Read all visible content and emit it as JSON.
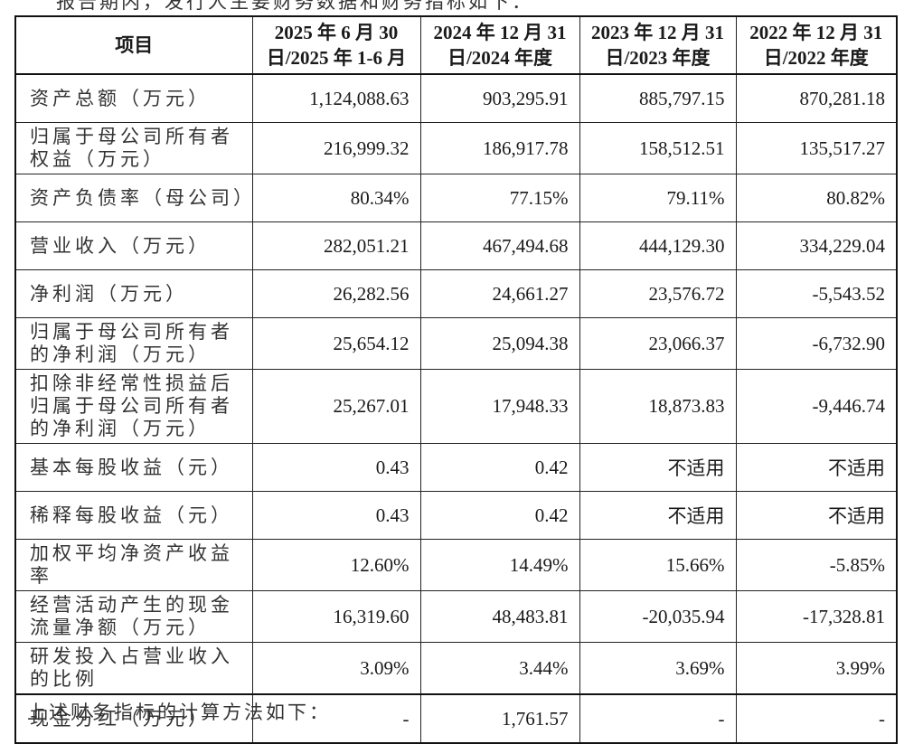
{
  "intro_text": "报告期内，发行人主要财务数据和财务指标如下：",
  "footer_text": "上述财务指标的计算方法如下：",
  "table": {
    "headers": [
      "项目",
      "2025 年 6 月 30 日/2025 年 1-6 月",
      "2024 年 12 月 31 日/2024 年度",
      "2023 年 12 月 31 日/2023 年度",
      "2022 年 12 月 31 日/2022 年度"
    ],
    "rows": [
      {
        "label": "资产总额（万元）",
        "values": [
          "1,124,088.63",
          "903,295.91",
          "885,797.15",
          "870,281.18"
        ]
      },
      {
        "label": "归属于母公司所有者权益（万元）",
        "values": [
          "216,999.32",
          "186,917.78",
          "158,512.51",
          "135,517.27"
        ]
      },
      {
        "label": "资产负债率（母公司）",
        "values": [
          "80.34%",
          "77.15%",
          "79.11%",
          "80.82%"
        ]
      },
      {
        "label": "营业收入（万元）",
        "values": [
          "282,051.21",
          "467,494.68",
          "444,129.30",
          "334,229.04"
        ]
      },
      {
        "label": "净利润（万元）",
        "values": [
          "26,282.56",
          "24,661.27",
          "23,576.72",
          "-5,543.52"
        ]
      },
      {
        "label": "归属于母公司所有者的净利润（万元）",
        "values": [
          "25,654.12",
          "25,094.38",
          "23,066.37",
          "-6,732.90"
        ]
      },
      {
        "label": "扣除非经常性损益后归属于母公司所有者的净利润（万元）",
        "values": [
          "25,267.01",
          "17,948.33",
          "18,873.83",
          "-9,446.74"
        ]
      },
      {
        "label": "基本每股收益（元）",
        "values": [
          "0.43",
          "0.42",
          "不适用",
          "不适用"
        ]
      },
      {
        "label": "稀释每股收益（元）",
        "values": [
          "0.43",
          "0.42",
          "不适用",
          "不适用"
        ]
      },
      {
        "label": "加权平均净资产收益率",
        "values": [
          "12.60%",
          "14.49%",
          "15.66%",
          "-5.85%"
        ]
      },
      {
        "label": "经营活动产生的现金流量净额（万元）",
        "values": [
          "16,319.60",
          "48,483.81",
          "-20,035.94",
          "-17,328.81"
        ]
      },
      {
        "label": "研发投入占营业收入的比例",
        "values": [
          "3.09%",
          "3.44%",
          "3.69%",
          "3.99%"
        ]
      },
      {
        "label": "现金分红（万元）",
        "values": [
          "-",
          "1,761.57",
          "-",
          "-"
        ]
      }
    ]
  }
}
